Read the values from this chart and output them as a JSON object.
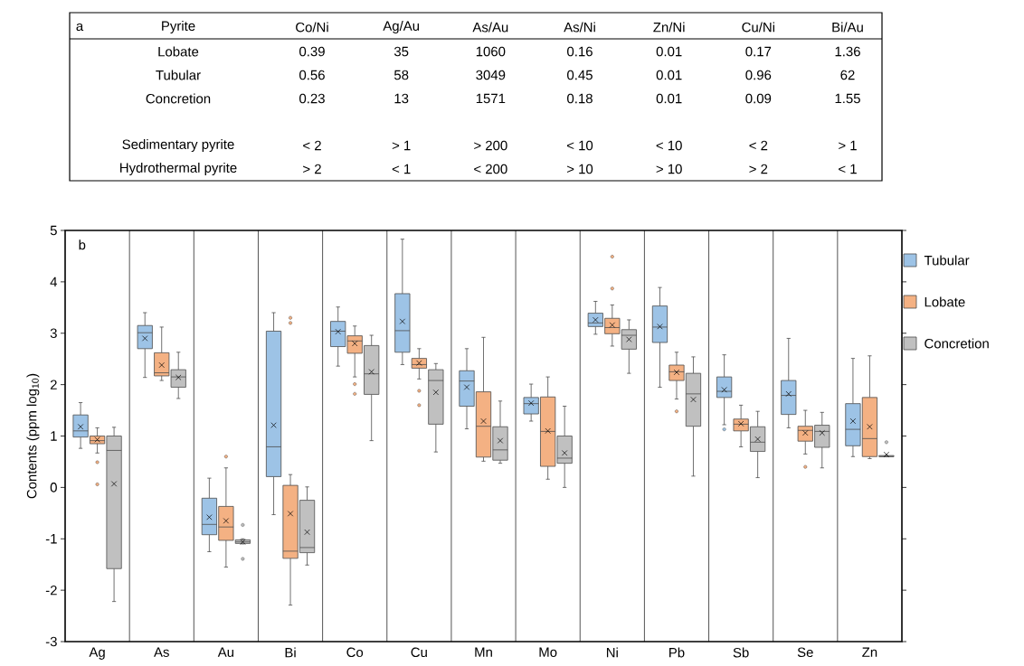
{
  "chart_data": [
    {
      "type": "other",
      "title": "a",
      "ylabel": "Pyrite",
      "categories": [
        "Co/Ni",
        "Ag/Au",
        "As/Au",
        "As/Ni",
        "Zn/Ni",
        "Cu/Ni",
        "Bi/Au"
      ],
      "y_categories": [
        "Lobate",
        "Tubular",
        "Concretion",
        null,
        "Sedimentary pyrite",
        "Hydrothermal pyrite"
      ],
      "cell_labels": [
        [
          "0.39",
          "35",
          "1060",
          "0.16",
          "0.01",
          "0.17",
          "1.36"
        ],
        [
          "0.56",
          "58",
          "3049",
          "0.45",
          "0.01",
          "0.96",
          "62"
        ],
        [
          "0.23",
          "13",
          "1571",
          "0.18",
          "0.01",
          "0.09",
          "1.55"
        ],
        [
          null,
          null,
          null,
          null,
          null,
          null,
          null
        ],
        [
          "< 2",
          "> 1",
          "> 200",
          "< 10",
          "< 10",
          "< 2",
          "> 1"
        ],
        [
          "> 2",
          "< 1",
          "< 200",
          "> 10",
          "> 10",
          "> 2",
          "< 1"
        ]
      ]
    },
    {
      "type": "box",
      "title": "b",
      "ylabel": "Contents (ppm log$_{10}$)",
      "categories": [
        "Ag",
        "As",
        "Au",
        "Bi",
        "Co",
        "Cu",
        "Mn",
        "Mo",
        "Ni",
        "Pb",
        "Sb",
        "Se",
        "Zn"
      ],
      "ylim": [
        -3,
        5
      ],
      "yticks": [
        -3,
        -2,
        -1,
        0,
        1,
        2,
        3,
        4,
        5
      ],
      "grid": "x",
      "legend": "right",
      "series": [
        {
          "name": "Tubular",
          "color": "#9dc3e6",
          "boxes": [
            {
              "low": 0.76,
              "q1": 0.98,
              "median": 1.1,
              "q3": 1.41,
              "high": 1.65,
              "mean": 1.18
            },
            {
              "low": 2.14,
              "q1": 2.7,
              "median": 3.01,
              "q3": 3.15,
              "high": 3.4,
              "mean": 2.9
            },
            {
              "low": -1.25,
              "q1": -0.92,
              "median": -0.72,
              "q3": -0.21,
              "high": 0.18,
              "mean": -0.58
            },
            {
              "low": -0.53,
              "q1": 0.21,
              "median": 0.79,
              "q3": 3.04,
              "high": 3.4,
              "mean": 1.21
            },
            {
              "low": 2.36,
              "q1": 2.74,
              "median": 3.04,
              "q3": 3.23,
              "high": 3.51,
              "mean": 3.03
            },
            {
              "low": 2.39,
              "q1": 2.63,
              "median": 3.05,
              "q3": 3.77,
              "high": 4.83,
              "mean": 3.23
            },
            {
              "low": 1.14,
              "q1": 1.58,
              "median": 2.07,
              "q3": 2.27,
              "high": 2.7,
              "mean": 1.95
            },
            {
              "low": 1.29,
              "q1": 1.43,
              "median": 1.63,
              "q3": 1.75,
              "high": 2.01,
              "mean": 1.64
            },
            {
              "low": 2.98,
              "q1": 3.13,
              "median": 3.2,
              "q3": 3.39,
              "high": 3.62,
              "mean": 3.26
            },
            {
              "low": 1.95,
              "q1": 2.82,
              "median": 3.12,
              "q3": 3.53,
              "high": 3.89,
              "mean": 3.13
            },
            {
              "low": 1.22,
              "q1": 1.75,
              "median": 1.87,
              "q3": 2.15,
              "high": 2.58,
              "mean": 1.9,
              "outliers": [
                1.13
              ]
            },
            {
              "low": 1.16,
              "q1": 1.42,
              "median": 1.79,
              "q3": 2.08,
              "high": 2.9,
              "mean": 1.82
            },
            {
              "low": 0.6,
              "q1": 0.81,
              "median": 1.13,
              "q3": 1.63,
              "high": 2.51,
              "mean": 1.29
            }
          ]
        },
        {
          "name": "Lobate",
          "color": "#f4b183",
          "boxes": [
            {
              "low": 0.67,
              "q1": 0.85,
              "median": 0.91,
              "q3": 1.0,
              "high": 1.16,
              "mean": 0.93,
              "outliers": [
                0.49,
                0.06
              ]
            },
            {
              "low": 2.08,
              "q1": 2.17,
              "median": 2.23,
              "q3": 2.62,
              "high": 3.12,
              "mean": 2.38
            },
            {
              "low": -1.55,
              "q1": -1.03,
              "median": -0.77,
              "q3": -0.37,
              "high": 0.38,
              "mean": -0.65,
              "outliers": [
                0.6
              ]
            },
            {
              "low": -2.29,
              "q1": -1.38,
              "median": -1.24,
              "q3": 0.04,
              "high": 0.25,
              "mean": -0.51,
              "outliers": [
                3.2,
                3.3
              ]
            },
            {
              "low": 2.15,
              "q1": 2.61,
              "median": 2.85,
              "q3": 2.95,
              "high": 3.14,
              "mean": 2.8,
              "outliers": [
                2.01,
                1.82
              ]
            },
            {
              "low": 2.11,
              "q1": 2.32,
              "median": 2.39,
              "q3": 2.51,
              "high": 2.7,
              "mean": 2.42,
              "outliers": [
                1.88,
                1.6
              ]
            },
            {
              "low": 0.51,
              "q1": 0.59,
              "median": 1.19,
              "q3": 1.86,
              "high": 2.92,
              "mean": 1.29
            },
            {
              "low": 0.16,
              "q1": 0.41,
              "median": 1.09,
              "q3": 1.76,
              "high": 2.15,
              "mean": 1.1
            },
            {
              "low": 2.75,
              "q1": 2.99,
              "median": 3.11,
              "q3": 3.29,
              "high": 3.55,
              "mean": 3.16,
              "outliers": [
                4.49,
                3.87
              ]
            },
            {
              "low": 1.72,
              "q1": 2.08,
              "median": 2.25,
              "q3": 2.38,
              "high": 2.63,
              "mean": 2.24,
              "outliers": [
                1.48
              ]
            },
            {
              "low": 0.79,
              "q1": 1.1,
              "median": 1.23,
              "q3": 1.33,
              "high": 1.6,
              "mean": 1.24
            },
            {
              "low": 0.65,
              "q1": 0.9,
              "median": 1.11,
              "q3": 1.19,
              "high": 1.5,
              "mean": 1.06,
              "outliers": [
                0.4
              ]
            },
            {
              "low": 0.56,
              "q1": 0.6,
              "median": 0.95,
              "q3": 1.75,
              "high": 2.56,
              "mean": 1.18
            }
          ]
        },
        {
          "name": "Concretion",
          "color": "#c0c0c0",
          "boxes": [
            {
              "low": -2.22,
              "q1": -1.58,
              "median": 0.72,
              "q3": 1.0,
              "high": 1.17,
              "mean": 0.07
            },
            {
              "low": 1.73,
              "q1": 1.95,
              "median": 2.15,
              "q3": 2.29,
              "high": 2.63,
              "mean": 2.14
            },
            {
              "low": -1.1,
              "q1": -1.09,
              "median": -1.06,
              "q3": -1.02,
              "high": -1.0,
              "mean": -1.06,
              "outliers": [
                -0.73,
                -1.39
              ]
            },
            {
              "low": -1.51,
              "q1": -1.27,
              "median": -1.17,
              "q3": -0.25,
              "high": 0.01,
              "mean": -0.87
            },
            {
              "low": 0.91,
              "q1": 1.81,
              "median": 2.21,
              "q3": 2.76,
              "high": 2.96,
              "mean": 2.25
            },
            {
              "low": 0.69,
              "q1": 1.23,
              "median": 2.08,
              "q3": 2.29,
              "high": 2.41,
              "mean": 1.85
            },
            {
              "low": 0.47,
              "q1": 0.53,
              "median": 0.73,
              "q3": 1.18,
              "high": 1.68,
              "mean": 0.91
            },
            {
              "low": 0.0,
              "q1": 0.47,
              "median": 0.57,
              "q3": 1.0,
              "high": 1.58,
              "mean": 0.67
            },
            {
              "low": 2.22,
              "q1": 2.69,
              "median": 2.96,
              "q3": 3.07,
              "high": 3.26,
              "mean": 2.88
            },
            {
              "low": 0.22,
              "q1": 1.19,
              "median": 1.82,
              "q3": 2.22,
              "high": 2.54,
              "mean": 1.71
            },
            {
              "low": 0.19,
              "q1": 0.7,
              "median": 0.88,
              "q3": 1.18,
              "high": 1.48,
              "mean": 0.94
            },
            {
              "low": 0.38,
              "q1": 0.78,
              "median": 1.09,
              "q3": 1.21,
              "high": 1.46,
              "mean": 1.06
            },
            {
              "low": 0.6,
              "q1": 0.6,
              "median": 0.6,
              "q3": 0.62,
              "high": 0.62,
              "mean": 0.64,
              "outliers": [
                0.88
              ]
            }
          ]
        }
      ]
    }
  ]
}
